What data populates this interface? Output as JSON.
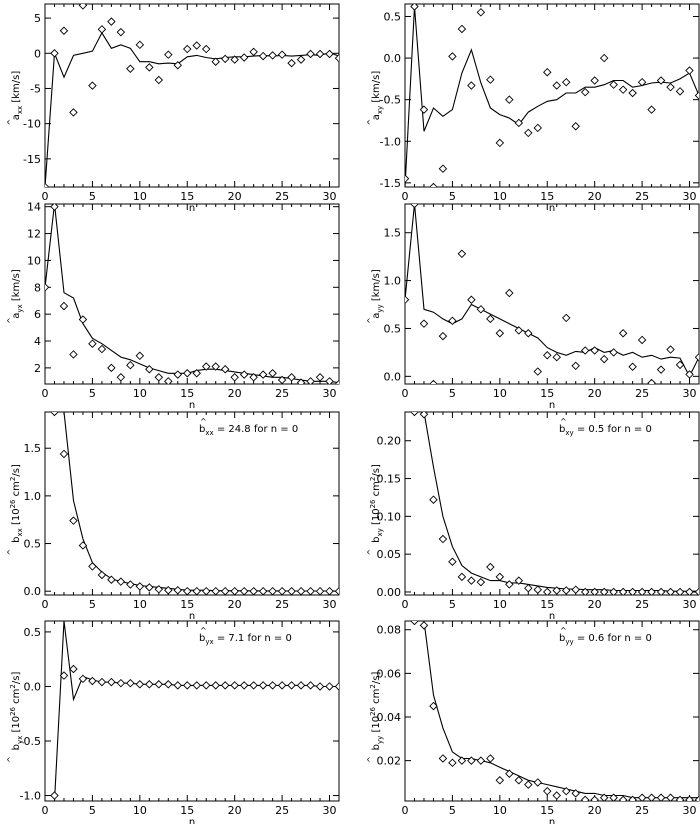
{
  "figure": {
    "x_label": "n"
  },
  "chart_data": [
    {
      "type": "line",
      "ylabel_sym": "a",
      "ylabel_sub": "xx",
      "ylabel_unit": " [km/s]",
      "xlim": [
        0,
        31
      ],
      "ylim": [
        -19,
        7
      ],
      "x_ticks": [
        0,
        5,
        10,
        15,
        20,
        25,
        30
      ],
      "y_ticks": [
        -15,
        -10,
        -5,
        0,
        5
      ],
      "annotation": null,
      "series": [
        {
          "kind": "line",
          "values": [
            -19,
            0,
            -3.4,
            -0.3,
            0,
            0.3,
            2.9,
            0.7,
            1.2,
            0.7,
            -1.2,
            -1.2,
            -1.5,
            -1.4,
            -1.5,
            -0.5,
            -0.3,
            -0.6,
            -0.8,
            -0.6,
            -0.5,
            -0.5,
            -0.4,
            -0.3,
            -0.4,
            -0.3,
            -0.4,
            -0.3,
            -0.2,
            -0.3,
            0.1,
            -0.4
          ]
        },
        {
          "kind": "points",
          "values": [
            -19,
            0,
            3.2,
            -8.4,
            6.8,
            -4.6,
            3.4,
            4.5,
            3,
            -2.2,
            1.2,
            -2,
            -3.8,
            -0.2,
            -1.7,
            0.6,
            1.1,
            0.6,
            -1.2,
            -0.8,
            -0.9,
            -0.6,
            0.2,
            -0.4,
            -0.3,
            -0.2,
            -1.4,
            -0.9,
            -0.1,
            -0.1,
            -0.1,
            -0.7
          ]
        }
      ]
    },
    {
      "type": "line",
      "ylabel_sym": "a",
      "ylabel_sub": "xy",
      "ylabel_unit": " [km/s]",
      "xlim": [
        0,
        31
      ],
      "ylim": [
        -1.55,
        0.65
      ],
      "x_ticks": [
        0,
        5,
        10,
        15,
        20,
        25,
        30
      ],
      "y_ticks": [
        -1.5,
        -1.0,
        -0.5,
        0.0,
        0.5
      ],
      "y_tick_labels": [
        "-1.5",
        "-1.0",
        "-0.5",
        "0.0",
        "0.5"
      ],
      "annotation": null,
      "series": [
        {
          "kind": "line",
          "values": [
            -1.55,
            0.62,
            -0.88,
            -0.6,
            -0.7,
            -0.62,
            -0.18,
            0.1,
            -0.3,
            -0.6,
            -0.68,
            -0.72,
            -0.8,
            -0.65,
            -0.58,
            -0.52,
            -0.5,
            -0.42,
            -0.42,
            -0.35,
            -0.35,
            -0.32,
            -0.27,
            -0.27,
            -0.35,
            -0.33,
            -0.3,
            -0.29,
            -0.3,
            -0.25,
            -0.18,
            -0.45
          ]
        },
        {
          "kind": "points",
          "values": [
            -1.45,
            0.62,
            -0.62,
            -1.55,
            -1.33,
            0.02,
            0.35,
            -0.33,
            0.55,
            -0.26,
            -1.02,
            -0.5,
            -0.78,
            -0.9,
            -0.84,
            -0.17,
            -0.33,
            -0.29,
            -0.82,
            -0.41,
            -0.27,
            0.0,
            -0.32,
            -0.38,
            -0.42,
            -0.29,
            -0.62,
            -0.27,
            -0.35,
            -0.4,
            -0.15,
            -0.45
          ]
        }
      ]
    },
    {
      "type": "line",
      "ylabel_sym": "a",
      "ylabel_sub": "yx",
      "ylabel_unit": " [km/s]",
      "xlim": [
        0,
        31
      ],
      "ylim": [
        0.8,
        14.2
      ],
      "x_ticks": [
        0,
        5,
        10,
        15,
        20,
        25,
        30
      ],
      "y_ticks": [
        2,
        4,
        6,
        8,
        10,
        12,
        14
      ],
      "annotation": null,
      "series": [
        {
          "kind": "line",
          "values": [
            8.0,
            14.2,
            7.6,
            7.2,
            5.3,
            4.2,
            3.8,
            3.3,
            2.8,
            2.6,
            2.3,
            2.0,
            1.8,
            1.6,
            1.6,
            1.6,
            1.8,
            1.9,
            1.9,
            1.8,
            1.7,
            1.6,
            1.5,
            1.4,
            1.3,
            1.3,
            1.2,
            1.1,
            1.0,
            1.0,
            1.0,
            0.9
          ]
        },
        {
          "kind": "points",
          "values": [
            8.0,
            14.0,
            6.6,
            3.0,
            5.6,
            3.8,
            3.4,
            2.0,
            1.3,
            2.2,
            2.9,
            1.9,
            1.3,
            1.0,
            1.5,
            1.6,
            1.6,
            2.1,
            2.1,
            1.9,
            1.3,
            1.5,
            1.3,
            1.5,
            1.6,
            1.1,
            1.3,
            0.9,
            1.0,
            1.3,
            1.0,
            0.8
          ]
        }
      ]
    },
    {
      "type": "line",
      "ylabel_sym": "a",
      "ylabel_sub": "yy",
      "ylabel_unit": " [km/s]",
      "xlim": [
        0,
        31
      ],
      "ylim": [
        -0.08,
        1.8
      ],
      "x_ticks": [
        0,
        5,
        10,
        15,
        20,
        25,
        30
      ],
      "y_ticks": [
        0.0,
        0.5,
        1.0,
        1.5
      ],
      "y_tick_labels": [
        "0.0",
        "0.5",
        "1.0",
        "1.5"
      ],
      "annotation": null,
      "series": [
        {
          "kind": "line",
          "values": [
            0.8,
            1.8,
            0.7,
            0.67,
            0.6,
            0.55,
            0.6,
            0.75,
            0.7,
            0.65,
            0.6,
            0.55,
            0.5,
            0.45,
            0.4,
            0.3,
            0.25,
            0.22,
            0.26,
            0.25,
            0.3,
            0.25,
            0.27,
            0.22,
            0.25,
            0.2,
            0.22,
            0.18,
            0.2,
            0.19,
            0.0,
            0.2
          ]
        },
        {
          "kind": "points",
          "values": [
            0.8,
            1.8,
            0.55,
            -0.08,
            0.42,
            0.58,
            1.28,
            0.8,
            0.7,
            0.6,
            0.45,
            0.87,
            0.48,
            0.45,
            0.05,
            0.22,
            0.2,
            0.61,
            0.11,
            0.27,
            0.27,
            0.18,
            0.25,
            0.45,
            0.1,
            0.38,
            -0.07,
            0.07,
            0.28,
            0.12,
            0.02,
            0.2
          ]
        }
      ]
    },
    {
      "type": "line",
      "ylabel_sym": "b",
      "ylabel_sub": "xx",
      "ylabel_unit": " [10",
      "xlim": [
        0,
        31
      ],
      "ylim": [
        -0.04,
        1.88
      ],
      "x_ticks": [
        0,
        5,
        10,
        15,
        20,
        25,
        30
      ],
      "y_ticks": [
        0.0,
        0.5,
        1.0,
        1.5
      ],
      "y_tick_labels": [
        "0.0",
        "0.5",
        "1.0",
        "1.5"
      ],
      "annotation": {
        "sym": "b",
        "sub": "xx",
        "text": " = 24.8 for n = 0"
      },
      "series": [
        {
          "kind": "line",
          "values": [
            1.88,
            1.88,
            1.88,
            0.95,
            0.55,
            0.3,
            0.2,
            0.13,
            0.1,
            0.08,
            0.06,
            0.05,
            0.04,
            0.03,
            0.02,
            0.01,
            0.01,
            0.01,
            0.005,
            0.005,
            0.005,
            0.004,
            0.004,
            0.003,
            0.003,
            0.003,
            0.002,
            0.002,
            0.002,
            0.002,
            0.002,
            0.002
          ]
        },
        {
          "kind": "points",
          "values": [
            null,
            1.88,
            1.44,
            0.74,
            0.48,
            0.26,
            0.17,
            0.12,
            0.1,
            0.07,
            0.05,
            0.04,
            0.02,
            0.01,
            0.01,
            0.0,
            0.0,
            0.0,
            0.0,
            0.0,
            0.0,
            0.0,
            0.0,
            0.0,
            0.0,
            0.0,
            0.0,
            0.0,
            0.0,
            0.0,
            0.0,
            0.0
          ]
        }
      ]
    },
    {
      "type": "line",
      "ylabel_sym": "b",
      "ylabel_sub": "xy",
      "ylabel_unit": " [10",
      "xlim": [
        0,
        31
      ],
      "ylim": [
        -0.004,
        0.238
      ],
      "x_ticks": [
        0,
        5,
        10,
        15,
        20,
        25,
        30
      ],
      "y_ticks": [
        0.0,
        0.05,
        0.1,
        0.15,
        0.2
      ],
      "y_tick_labels": [
        "0.00",
        "0.05",
        "0.10",
        "0.15",
        "0.20"
      ],
      "annotation": {
        "sym": "b",
        "sub": "xy",
        "text": " =  0.5 for n = 0"
      },
      "series": [
        {
          "kind": "line",
          "values": [
            0.238,
            0.238,
            0.238,
            0.165,
            0.1,
            0.06,
            0.035,
            0.025,
            0.02,
            0.015,
            0.015,
            0.012,
            0.012,
            0.01,
            0.008,
            0.006,
            0.005,
            0.004,
            0.004,
            0.003,
            0.003,
            0.003,
            0.002,
            0.002,
            0.002,
            0.002,
            0.002,
            0.002,
            0.001,
            0.001,
            0.001,
            0.001
          ]
        },
        {
          "kind": "points",
          "values": [
            null,
            0.238,
            0.235,
            0.122,
            0.07,
            0.04,
            0.02,
            0.015,
            0.013,
            0.033,
            0.02,
            0.01,
            0.015,
            0.005,
            0.003,
            0.0,
            0.002,
            0.002,
            0.003,
            0.0,
            0.0,
            0.0,
            0.0,
            0.0,
            0.0,
            0.0,
            0.0,
            0.0,
            0.0,
            0.0,
            0.0,
            0.0
          ]
        }
      ]
    },
    {
      "type": "line",
      "ylabel_sym": "b",
      "ylabel_sub": "yx",
      "ylabel_unit": " [10",
      "xlim": [
        0,
        31
      ],
      "ylim": [
        -1.05,
        0.6
      ],
      "x_ticks": [
        0,
        5,
        10,
        15,
        20,
        25,
        30
      ],
      "y_ticks": [
        -1.0,
        -0.5,
        0.0,
        0.5
      ],
      "y_tick_labels": [
        "-1.0",
        "-0.5",
        "0.0",
        "0.5"
      ],
      "annotation": {
        "sym": "b",
        "sub": "yx",
        "text": " =  7.1 for n = 0"
      },
      "series": [
        {
          "kind": "line",
          "values": [
            null,
            -1.05,
            0.6,
            -0.12,
            0.09,
            0.06,
            0.04,
            0.04,
            0.03,
            0.03,
            0.02,
            0.02,
            0.02,
            0.02,
            0.01,
            0.01,
            0.01,
            0.01,
            0.01,
            0.01,
            0.01,
            0.01,
            0.01,
            0.01,
            0.01,
            0.01,
            0.01,
            0.01,
            0.01,
            0.0,
            0.0,
            0.0
          ]
        },
        {
          "kind": "points",
          "values": [
            null,
            -1.0,
            0.1,
            0.16,
            0.07,
            0.05,
            0.04,
            0.04,
            0.03,
            0.03,
            0.02,
            0.02,
            0.02,
            0.02,
            0.01,
            0.01,
            0.01,
            0.01,
            0.01,
            0.01,
            0.01,
            0.01,
            0.01,
            0.01,
            0.01,
            0.01,
            0.01,
            0.01,
            0.01,
            0.0,
            0.0,
            0.0
          ]
        }
      ]
    },
    {
      "type": "line",
      "ylabel_sym": "b",
      "ylabel_sub": "yy",
      "ylabel_unit": " [10",
      "xlim": [
        0,
        31
      ],
      "ylim": [
        0.0015,
        0.084
      ],
      "x_ticks": [
        0,
        5,
        10,
        15,
        20,
        25,
        30
      ],
      "y_ticks": [
        0.02,
        0.04,
        0.06,
        0.08
      ],
      "y_tick_labels": [
        "0.02",
        "0.04",
        "0.06",
        "0.08"
      ],
      "annotation": {
        "sym": "b",
        "sub": "yy",
        "text": " =  0.6 for n = 0"
      },
      "series": [
        {
          "kind": "line",
          "values": [
            0.084,
            0.084,
            0.084,
            0.05,
            0.035,
            0.024,
            0.021,
            0.021,
            0.02,
            0.019,
            0.017,
            0.015,
            0.013,
            0.011,
            0.01,
            0.009,
            0.008,
            0.007,
            0.006,
            0.005,
            0.005,
            0.004,
            0.004,
            0.004,
            0.003,
            0.003,
            0.003,
            0.003,
            0.003,
            0.003,
            0.003,
            0.003
          ]
        },
        {
          "kind": "points",
          "values": [
            null,
            0.084,
            0.082,
            0.045,
            0.021,
            0.019,
            0.02,
            0.02,
            0.02,
            0.021,
            0.011,
            0.014,
            0.011,
            0.009,
            0.01,
            0.006,
            0.004,
            0.006,
            0.005,
            0.002,
            0.002,
            0.003,
            0.003,
            0.002,
            0.002,
            0.003,
            0.003,
            0.003,
            0.003,
            0.002,
            0.002,
            0.002
          ]
        }
      ]
    }
  ]
}
